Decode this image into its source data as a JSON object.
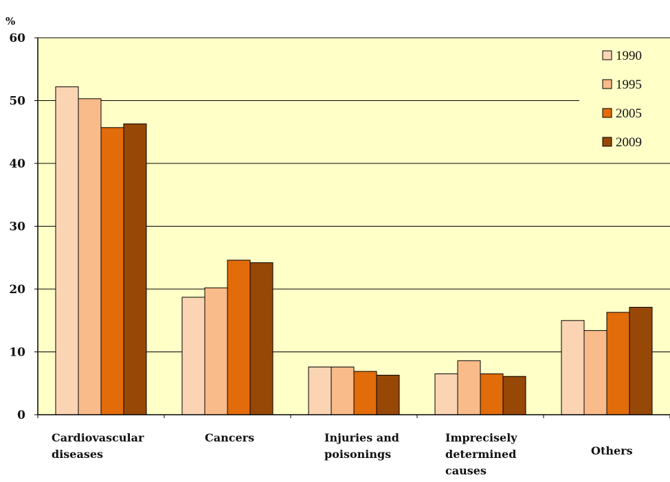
{
  "chart_data": {
    "type": "bar",
    "ylabel": "%",
    "ylim": [
      0,
      60
    ],
    "yticks": [
      "0",
      "10",
      "20",
      "30",
      "40",
      "50",
      "60"
    ],
    "grid": true,
    "legend_position": "top-right",
    "categories": [
      [
        "Cardiovascular",
        "diseases"
      ],
      [
        "Cancers"
      ],
      [
        "Injuries and",
        "poisonings"
      ],
      [
        "Imprecisely",
        "determined",
        "causes"
      ],
      [
        "Others"
      ]
    ],
    "series": [
      {
        "name": "1990",
        "color": "#fbd4b4",
        "values": [
          52.2,
          18.7,
          7.6,
          6.5,
          15.0
        ]
      },
      {
        "name": "1995",
        "color": "#fabb8a",
        "values": [
          50.3,
          20.2,
          7.6,
          8.6,
          13.4
        ]
      },
      {
        "name": "2005",
        "color": "#e26b0a",
        "values": [
          45.7,
          24.6,
          6.9,
          6.5,
          16.3
        ]
      },
      {
        "name": "2009",
        "color": "#974706",
        "values": [
          46.3,
          24.2,
          6.3,
          6.1,
          17.1
        ]
      }
    ],
    "plot_background": "#ffffc8"
  }
}
